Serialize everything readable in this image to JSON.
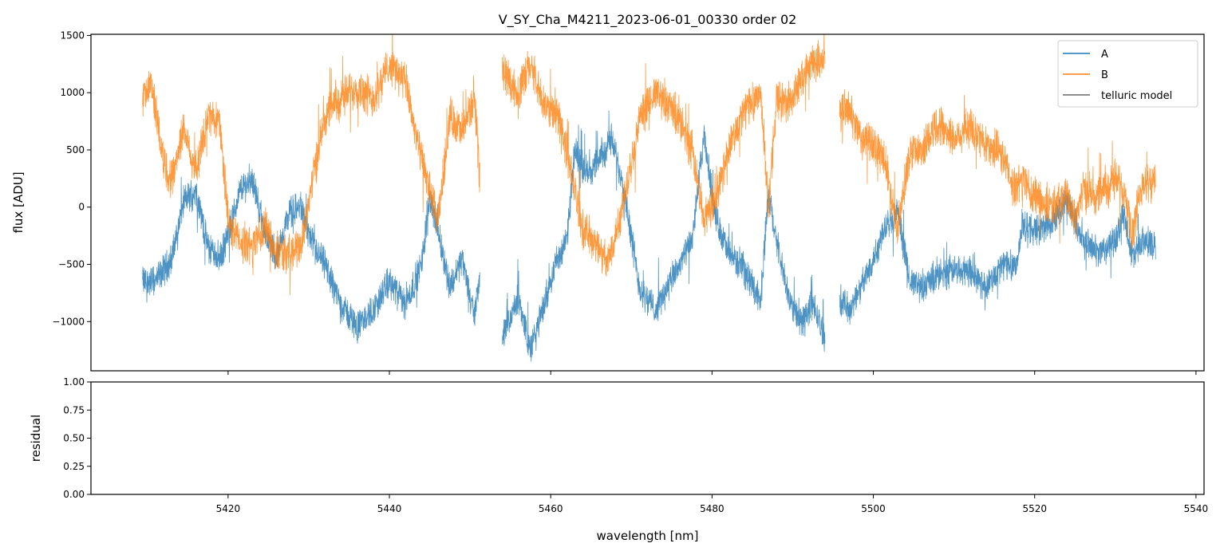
{
  "chart_data": {
    "type": "line",
    "title": "V_SY_Cha_M4211_2023-06-01_00330  order 02",
    "top_panel": {
      "ylabel": "flux [ADU]",
      "ylim": [
        -1430,
        1510
      ],
      "yticks": [
        -1000,
        -500,
        0,
        500,
        1000,
        1500
      ],
      "ytick_labels": [
        "−1000",
        "−500",
        "0",
        "500",
        "1000",
        "1500"
      ],
      "legend_position": "top-right",
      "series": [
        {
          "name": "A",
          "color": "#1f77b4",
          "opacity": 0.8,
          "noise": 110,
          "segments": [
            {
              "points": [
                [
                  5409.4,
                  -650
                ],
                [
                  5411,
                  -650
                ],
                [
                  5413,
                  -450
                ],
                [
                  5414.5,
                  50
                ],
                [
                  5416,
                  150
                ],
                [
                  5417.5,
                  -350
                ],
                [
                  5419,
                  -450
                ],
                [
                  5420,
                  -250
                ],
                [
                  5421.5,
                  150
                ],
                [
                  5423,
                  250
                ],
                [
                  5424.5,
                  -200
                ],
                [
                  5426,
                  -450
                ],
                [
                  5427.5,
                  -50
                ],
                [
                  5429,
                  0
                ],
                [
                  5430.5,
                  -350
                ],
                [
                  5432,
                  -500
                ],
                [
                  5434,
                  -850
                ],
                [
                  5436,
                  -1050
                ],
                [
                  5438,
                  -900
                ],
                [
                  5440,
                  -650
                ],
                [
                  5442,
                  -850
                ],
                [
                  5444,
                  -500
                ],
                [
                  5445,
                  100
                ],
                [
                  5446,
                  -200
                ],
                [
                  5447.5,
                  -700
                ],
                [
                  5449,
                  -450
                ],
                [
                  5450.5,
                  -950
                ],
                [
                  5451.2,
                  -600
                ]
              ]
            },
            {
              "points": [
                [
                  5454,
                  -1150
                ],
                [
                  5456,
                  -800
                ],
                [
                  5457.5,
                  -1250
                ],
                [
                  5459,
                  -900
                ],
                [
                  5460.5,
                  -500
                ],
                [
                  5462,
                  -300
                ],
                [
                  5463,
                  500
                ],
                [
                  5464.5,
                  300
                ],
                [
                  5466,
                  400
                ],
                [
                  5467.5,
                  600
                ],
                [
                  5469,
                  200
                ],
                [
                  5471,
                  -700
                ],
                [
                  5473,
                  -900
                ],
                [
                  5474.5,
                  -700
                ],
                [
                  5476,
                  -500
                ],
                [
                  5477.5,
                  -300
                ],
                [
                  5479,
                  600
                ],
                [
                  5480.5,
                  -100
                ],
                [
                  5482,
                  -400
                ],
                [
                  5484,
                  -550
                ],
                [
                  5486,
                  -800
                ],
                [
                  5487,
                  100
                ],
                [
                  5488,
                  -300
                ],
                [
                  5489.5,
                  -800
                ],
                [
                  5491,
                  -1000
                ],
                [
                  5492.5,
                  -850
                ],
                [
                  5494,
                  -1150
                ]
              ]
            },
            {
              "points": [
                [
                  5495.8,
                  -800
                ],
                [
                  5497,
                  -900
                ],
                [
                  5498.5,
                  -700
                ],
                [
                  5500,
                  -450
                ],
                [
                  5501.5,
                  -150
                ],
                [
                  5503,
                  -50
                ],
                [
                  5504.5,
                  -650
                ],
                [
                  5506,
                  -700
                ],
                [
                  5508,
                  -600
                ],
                [
                  5510,
                  -550
                ],
                [
                  5512,
                  -550
                ],
                [
                  5514,
                  -700
                ],
                [
                  5516,
                  -500
                ],
                [
                  5517.8,
                  -500
                ],
                [
                  5518.5,
                  -150
                ],
                [
                  5520,
                  -200
                ],
                [
                  5522,
                  -150
                ],
                [
                  5524,
                  50
                ],
                [
                  5526,
                  -300
                ],
                [
                  5528,
                  -400
                ],
                [
                  5530,
                  -300
                ],
                [
                  5531,
                  -50
                ],
                [
                  5532,
                  -400
                ],
                [
                  5533.5,
                  -300
                ],
                [
                  5535,
                  -350
                ]
              ]
            }
          ]
        },
        {
          "name": "B",
          "color": "#ff7f0e",
          "opacity": 0.8,
          "noise": 140,
          "segments": [
            {
              "points": [
                [
                  5409.4,
                  900
                ],
                [
                  5410.5,
                  1100
                ],
                [
                  5412,
                  400
                ],
                [
                  5413,
                  250
                ],
                [
                  5414.5,
                  700
                ],
                [
                  5416,
                  300
                ],
                [
                  5417.5,
                  800
                ],
                [
                  5419,
                  750
                ],
                [
                  5420,
                  -150
                ],
                [
                  5421.5,
                  -300
                ],
                [
                  5423,
                  -350
                ],
                [
                  5424.5,
                  -150
                ],
                [
                  5426,
                  -400
                ],
                [
                  5427.5,
                  -400
                ],
                [
                  5429,
                  -350
                ],
                [
                  5430.5,
                  250
                ],
                [
                  5432,
                  800
                ],
                [
                  5434,
                  950
                ],
                [
                  5436,
                  1050
                ],
                [
                  5438,
                  950
                ],
                [
                  5440,
                  1250
                ],
                [
                  5442,
                  1100
                ],
                [
                  5443.5,
                  550
                ],
                [
                  5445,
                  150
                ],
                [
                  5446,
                  -150
                ],
                [
                  5447.5,
                  800
                ],
                [
                  5449,
                  650
                ],
                [
                  5450.5,
                  950
                ],
                [
                  5451.2,
                  300
                ]
              ]
            },
            {
              "points": [
                [
                  5454,
                  1200
                ],
                [
                  5456,
                  1000
                ],
                [
                  5457.5,
                  1250
                ],
                [
                  5459,
                  900
                ],
                [
                  5461,
                  800
                ],
                [
                  5462.5,
                  300
                ],
                [
                  5464,
                  -200
                ],
                [
                  5465.5,
                  -300
                ],
                [
                  5467,
                  -500
                ],
                [
                  5468.5,
                  -100
                ],
                [
                  5470,
                  400
                ],
                [
                  5471,
                  750
                ],
                [
                  5473,
                  1000
                ],
                [
                  5474.5,
                  900
                ],
                [
                  5476,
                  750
                ],
                [
                  5477.5,
                  500
                ],
                [
                  5479,
                  -100
                ],
                [
                  5480.5,
                  100
                ],
                [
                  5482,
                  500
                ],
                [
                  5484,
                  850
                ],
                [
                  5486,
                  1000
                ],
                [
                  5487,
                  0
                ],
                [
                  5488,
                  950
                ],
                [
                  5489.5,
                  900
                ],
                [
                  5491,
                  1100
                ],
                [
                  5492.5,
                  1250
                ],
                [
                  5494,
                  1300
                ]
              ]
            },
            {
              "points": [
                [
                  5495.8,
                  850
                ],
                [
                  5497,
                  850
                ],
                [
                  5498.5,
                  600
                ],
                [
                  5500,
                  550
                ],
                [
                  5501.5,
                  400
                ],
                [
                  5503,
                  -200
                ],
                [
                  5504.5,
                  450
                ],
                [
                  5506,
                  500
                ],
                [
                  5508,
                  750
                ],
                [
                  5510,
                  600
                ],
                [
                  5512,
                  700
                ],
                [
                  5514,
                  550
                ],
                [
                  5516,
                  450
                ],
                [
                  5517.5,
                  150
                ],
                [
                  5518.5,
                  250
                ],
                [
                  5520,
                  100
                ],
                [
                  5522,
                  0
                ],
                [
                  5524,
                  100
                ],
                [
                  5525,
                  -100
                ],
                [
                  5526,
                  150
                ],
                [
                  5528,
                  100
                ],
                [
                  5530,
                  250
                ],
                [
                  5531.5,
                  100
                ],
                [
                  5532,
                  -250
                ],
                [
                  5533.5,
                  250
                ],
                [
                  5535,
                  200
                ]
              ]
            }
          ]
        },
        {
          "name": "telluric model",
          "color": "#666666",
          "segments": []
        }
      ]
    },
    "bottom_panel": {
      "ylabel": "residual",
      "ylim": [
        0,
        1
      ],
      "yticks": [
        0,
        0.25,
        0.5,
        0.75,
        1.0
      ],
      "ytick_labels": [
        "0.00",
        "0.25",
        "0.50",
        "0.75",
        "1.00"
      ],
      "series": []
    },
    "xaxis": {
      "xlabel": "wavelength [nm]",
      "xlim": [
        5403,
        5541
      ],
      "xticks": [
        5420,
        5440,
        5460,
        5480,
        5500,
        5520,
        5540
      ],
      "xtick_labels": [
        "5420",
        "5440",
        "5460",
        "5480",
        "5500",
        "5520",
        "5540"
      ]
    }
  }
}
